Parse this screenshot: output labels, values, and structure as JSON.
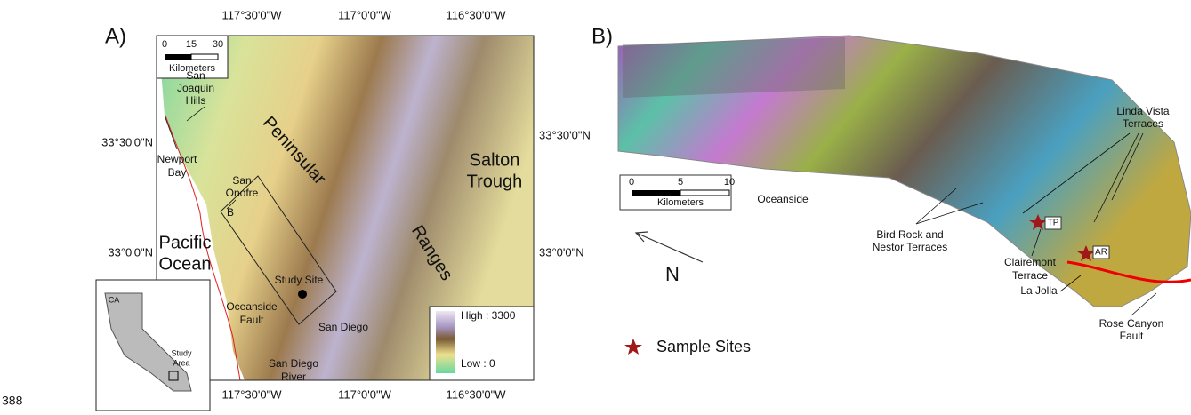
{
  "page_number": "388",
  "panel_a": {
    "label": "A)",
    "lon_labels": [
      "117°30'0\"W",
      "117°0'0\"W",
      "116°30'0\"W"
    ],
    "lat_labels": [
      "33°30'0\"N",
      "33°0'0\"N"
    ],
    "scale": {
      "ticks": [
        "0",
        "15",
        "30"
      ],
      "unit": "Kilometers"
    },
    "places": {
      "san_joaquin_hills": [
        "San",
        "Joaquin",
        "Hills"
      ],
      "newport_bay": [
        "Newport",
        "Bay"
      ],
      "san_onofre": [
        "San",
        "Onofre"
      ],
      "box_label": "B",
      "pacific_ocean": [
        "Pacific",
        "Ocean"
      ],
      "peninsular": "Peninsular",
      "ranges": "Ranges",
      "salton_trough": [
        "Salton",
        "Trough"
      ],
      "study_site": "Study Site",
      "oceanside_fault": [
        "Oceanside",
        "Fault"
      ],
      "san_diego": "San Diego",
      "san_diego_river": [
        "San Diego",
        "River"
      ]
    },
    "legend": {
      "high": "High : 3300",
      "low": "Low : 0"
    },
    "inset": {
      "state": "CA",
      "study_area": [
        "Study",
        "Area"
      ]
    }
  },
  "panel_b": {
    "label": "B)",
    "scale": {
      "ticks": [
        "0",
        "5",
        "10"
      ],
      "unit": "Kilometers"
    },
    "north": "N",
    "places": {
      "oceanside": "Oceanside",
      "bird_rock": [
        "Bird Rock and",
        "Nestor Terraces"
      ],
      "linda_vista": [
        "Linda Vista",
        "Terraces"
      ],
      "tp": "TP",
      "ar": "AR",
      "clairemont": [
        "Clairemont",
        "Terrace"
      ],
      "la_jolla": "La Jolla",
      "rose_canyon": [
        "Rose Canyon",
        "Fault"
      ]
    },
    "legend": "Sample Sites"
  }
}
